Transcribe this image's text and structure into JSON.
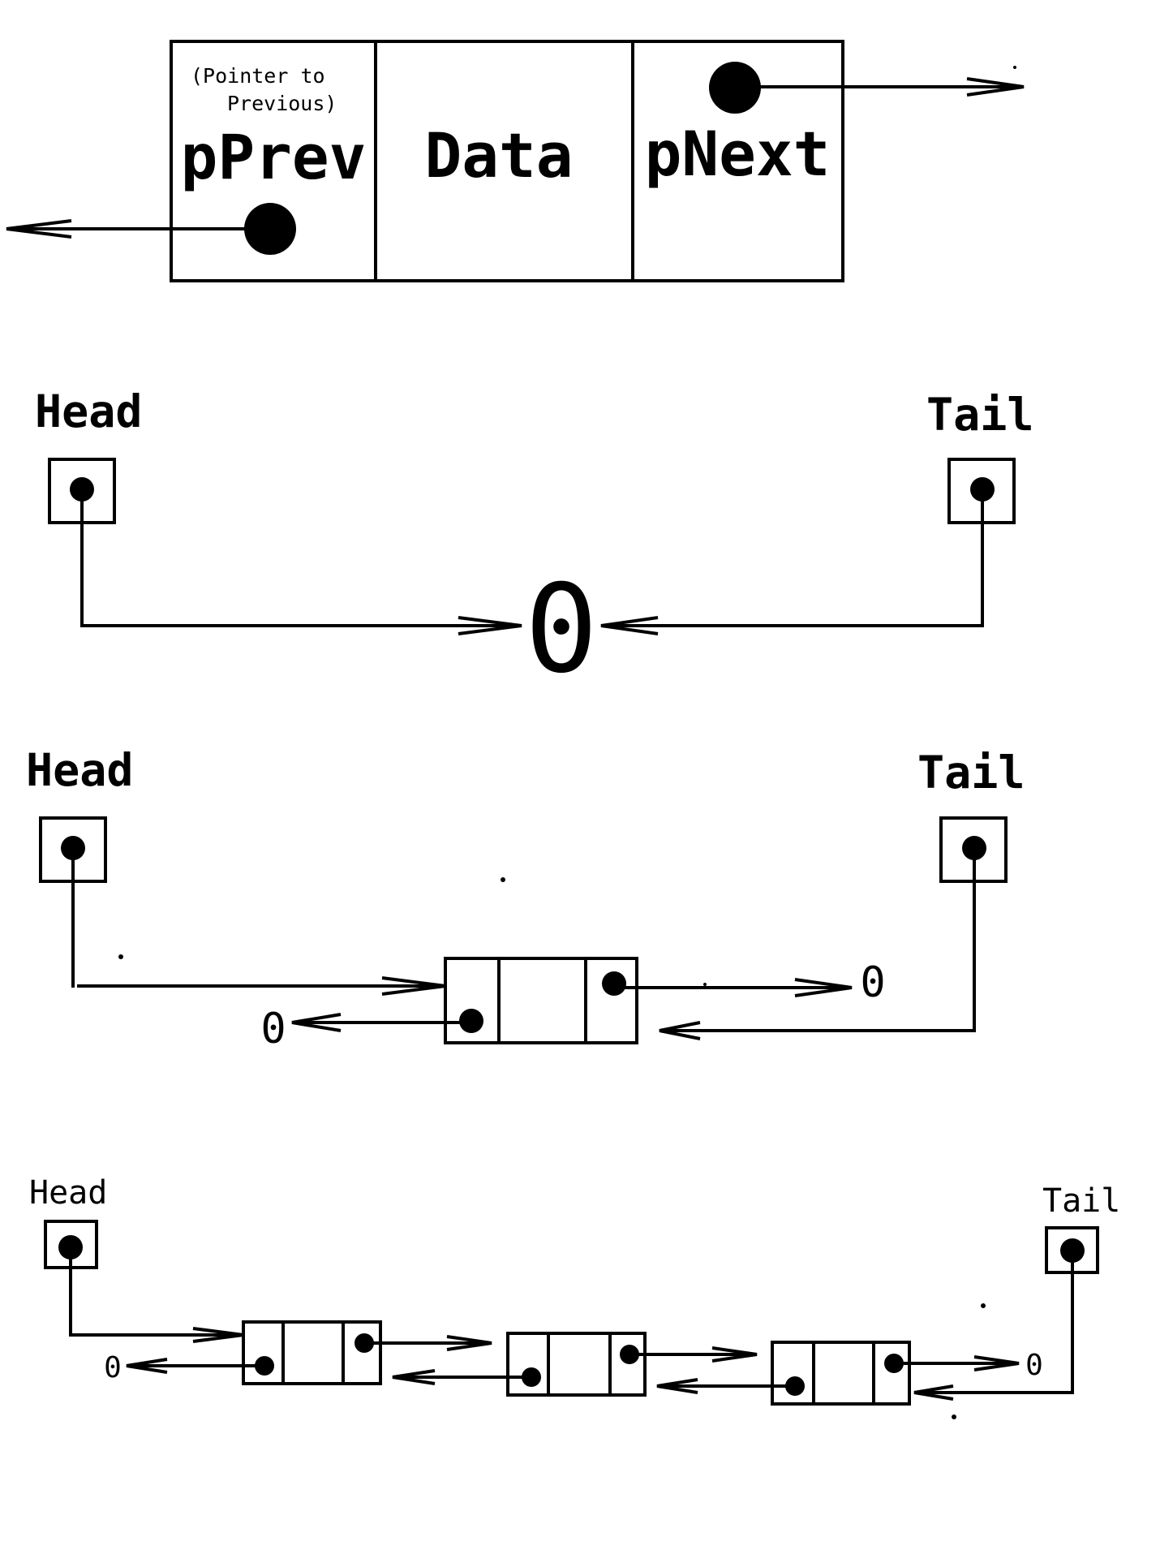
{
  "node_detail": {
    "prev_note_line1": "(Pointer to",
    "prev_note_line2": "Previous)",
    "prev_label": "pPrev",
    "data_label": "Data",
    "next_label": "pNext"
  },
  "empty_list": {
    "head_label": "Head",
    "tail_label": "Tail",
    "null_label": "0"
  },
  "one_node_list": {
    "head_label": "Head",
    "tail_label": "Tail",
    "null_left_label": "0",
    "null_right_label": "0"
  },
  "three_node_list": {
    "head_label": "Head",
    "tail_label": "Tail",
    "null_left_label": "0",
    "null_right_label": "0"
  },
  "colors": {
    "ink": "#000000",
    "background": "#ffffff"
  }
}
